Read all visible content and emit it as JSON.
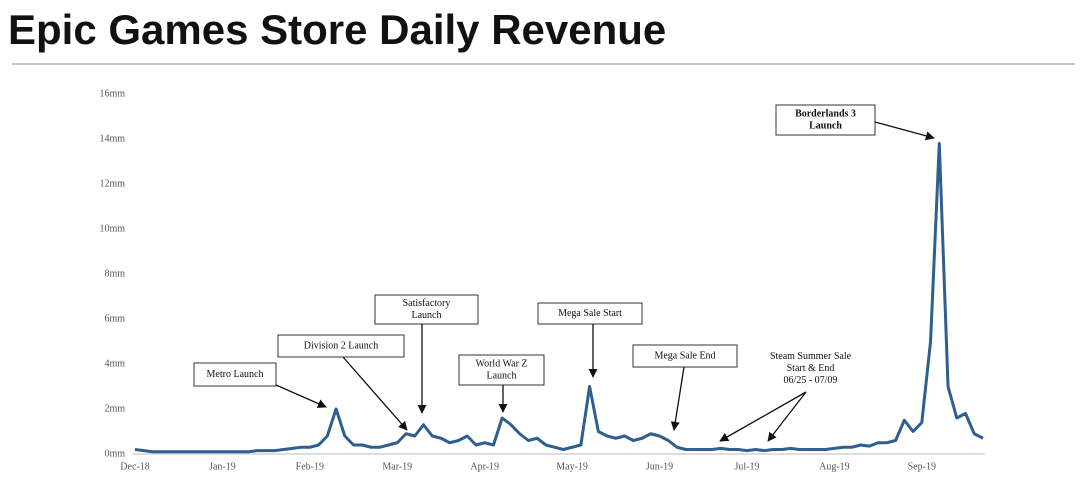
{
  "chart_data": {
    "type": "line",
    "title": "Epic Games Store Daily Revenue",
    "categories": [
      "Dec-18",
      null,
      null,
      null,
      null,
      null,
      null,
      null,
      null,
      null,
      "Jan-19",
      null,
      null,
      null,
      null,
      null,
      null,
      null,
      null,
      null,
      "Feb-19",
      null,
      null,
      null,
      null,
      null,
      null,
      null,
      null,
      null,
      "Mar-19",
      null,
      null,
      null,
      null,
      null,
      null,
      null,
      null,
      null,
      "Apr-19",
      null,
      null,
      null,
      null,
      null,
      null,
      null,
      null,
      null,
      "May-19",
      null,
      null,
      null,
      null,
      null,
      null,
      null,
      null,
      null,
      "Jun-19",
      null,
      null,
      null,
      null,
      null,
      null,
      null,
      null,
      null,
      "Jul-19",
      null,
      null,
      null,
      null,
      null,
      null,
      null,
      null,
      null,
      "Aug-19",
      null,
      null,
      null,
      null,
      null,
      null,
      null,
      null,
      null,
      "Sep-19",
      null,
      null,
      null,
      null,
      null,
      null,
      null
    ],
    "values": [
      0.2,
      0.15,
      0.1,
      0.1,
      0.1,
      0.1,
      0.1,
      0.1,
      0.1,
      0.1,
      0.1,
      0.1,
      0.1,
      0.1,
      0.15,
      0.15,
      0.15,
      0.2,
      0.25,
      0.3,
      0.3,
      0.4,
      0.8,
      2.0,
      0.8,
      0.4,
      0.4,
      0.3,
      0.3,
      0.4,
      0.5,
      0.9,
      0.8,
      1.3,
      0.8,
      0.7,
      0.5,
      0.6,
      0.8,
      0.4,
      0.5,
      0.4,
      1.6,
      1.3,
      0.9,
      0.6,
      0.7,
      0.4,
      0.3,
      0.2,
      0.3,
      0.4,
      3.0,
      1.0,
      0.8,
      0.7,
      0.8,
      0.6,
      0.7,
      0.9,
      0.8,
      0.6,
      0.3,
      0.2,
      0.2,
      0.2,
      0.2,
      0.25,
      0.2,
      0.2,
      0.15,
      0.2,
      0.15,
      0.2,
      0.2,
      0.25,
      0.2,
      0.2,
      0.2,
      0.2,
      0.25,
      0.3,
      0.3,
      0.4,
      0.35,
      0.5,
      0.5,
      0.6,
      1.5,
      1.0,
      1.4,
      5.0,
      13.8,
      3.0,
      1.6,
      1.8,
      0.9,
      0.7
    ],
    "color": "#2f5f8f",
    "ylim": [
      0,
      16
    ],
    "yticks": [
      {
        "value": 0,
        "label": "0mm"
      },
      {
        "value": 2,
        "label": "2mm"
      },
      {
        "value": 4,
        "label": "4mm"
      },
      {
        "value": 6,
        "label": "6mm"
      },
      {
        "value": 8,
        "label": "8mm"
      },
      {
        "value": 10,
        "label": "10mm"
      },
      {
        "value": 12,
        "label": "12mm"
      },
      {
        "value": 14,
        "label": "14mm"
      },
      {
        "value": 16,
        "label": "16mm"
      }
    ],
    "grid": false,
    "annotations": [
      {
        "text": [
          "Metro Launch"
        ]
      },
      {
        "text": [
          "Division 2 Launch"
        ]
      },
      {
        "text": [
          "Satisfactory",
          "Launch"
        ]
      },
      {
        "text": [
          "World War Z",
          "Launch"
        ]
      },
      {
        "text": [
          "Mega Sale Start"
        ]
      },
      {
        "text": [
          "Mega Sale End"
        ]
      },
      {
        "text": [
          "Steam Summer Sale",
          "Start & End",
          "06/25 - 07/09"
        ]
      },
      {
        "text": [
          "Borderlands 3",
          "Launch"
        ]
      }
    ]
  }
}
